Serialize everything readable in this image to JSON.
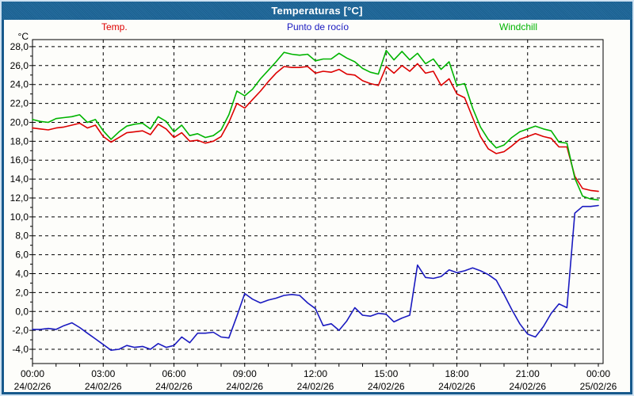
{
  "window": {
    "title": "Temperaturas [°C]"
  },
  "legend": [
    {
      "label": "Temp.",
      "color": "#dd0000"
    },
    {
      "label": "Punto de rocío",
      "color": "#1a1ac0"
    },
    {
      "label": "Windchill",
      "color": "#00b400"
    }
  ],
  "colors": {
    "titlebar": "#1f6494",
    "window_border": "#17598c",
    "plot_border": "#000000",
    "temp_line": "#dd0000",
    "dew_line": "#1a1ac0",
    "windchill_line": "#00b400"
  },
  "chart_data": {
    "type": "line",
    "title": "Temperaturas [°C]",
    "xlabel": "",
    "ylabel": "°C",
    "ylim": [
      -5.5,
      28.7
    ],
    "xlim_hours": [
      0,
      24.2
    ],
    "grid": "dashed",
    "legend_position": "top",
    "x_unit": "hours since 00:00 24/02/26",
    "x": [
      0,
      0.33,
      0.67,
      1,
      1.33,
      1.67,
      2,
      2.33,
      2.67,
      3,
      3.33,
      3.67,
      4,
      4.33,
      4.67,
      5,
      5.33,
      5.67,
      6,
      6.33,
      6.67,
      7,
      7.33,
      7.67,
      8,
      8.33,
      8.67,
      9,
      9.33,
      9.67,
      10,
      10.33,
      10.67,
      11,
      11.33,
      11.67,
      12,
      12.33,
      12.67,
      13,
      13.33,
      13.67,
      14,
      14.33,
      14.67,
      15,
      15.33,
      15.67,
      16,
      16.33,
      16.67,
      17,
      17.33,
      17.67,
      18,
      18.33,
      18.67,
      19,
      19.33,
      19.67,
      20,
      20.33,
      20.67,
      21,
      21.33,
      21.67,
      22,
      22.33,
      22.67,
      23,
      23.33,
      23.67,
      24
    ],
    "series": [
      {
        "name": "Temp.",
        "color": "#dd0000",
        "values": [
          19.4,
          19.3,
          19.2,
          19.4,
          19.5,
          19.7,
          19.9,
          19.4,
          19.7,
          18.5,
          17.9,
          18.4,
          18.9,
          19.0,
          19.1,
          18.7,
          19.8,
          19.3,
          18.4,
          18.9,
          18.0,
          18.1,
          17.8,
          18.0,
          18.5,
          20.0,
          22.0,
          21.5,
          22.4,
          23.3,
          24.3,
          25.2,
          25.9,
          25.8,
          25.8,
          25.9,
          25.2,
          25.4,
          25.3,
          25.6,
          25.1,
          25.0,
          24.4,
          24.1,
          23.9,
          25.9,
          25.2,
          26.0,
          25.4,
          26.2,
          25.2,
          25.4,
          23.9,
          24.6,
          23.0,
          22.6,
          20.5,
          18.5,
          17.2,
          16.7,
          16.9,
          17.5,
          18.2,
          18.5,
          18.8,
          18.5,
          18.3,
          17.4,
          17.4,
          14.3,
          13.0,
          12.8,
          12.7
        ]
      },
      {
        "name": "Punto de rocío",
        "color": "#1a1ac0",
        "values": [
          -1.9,
          -1.9,
          -1.8,
          -1.9,
          -1.5,
          -1.2,
          -1.7,
          -2.3,
          -2.9,
          -3.5,
          -4.1,
          -4.0,
          -3.6,
          -3.8,
          -3.7,
          -4.0,
          -3.4,
          -3.8,
          -3.6,
          -2.7,
          -3.3,
          -2.3,
          -2.3,
          -2.2,
          -2.7,
          -2.8,
          -0.5,
          1.9,
          1.3,
          0.9,
          1.2,
          1.4,
          1.7,
          1.8,
          1.7,
          0.9,
          0.3,
          -1.5,
          -1.3,
          -2.0,
          -1.0,
          0.4,
          -0.4,
          -0.5,
          -0.2,
          -0.3,
          -1.1,
          -0.7,
          -0.4,
          4.9,
          3.6,
          3.5,
          3.7,
          4.4,
          4.1,
          4.3,
          4.6,
          4.3,
          3.9,
          3.3,
          1.8,
          0.2,
          -1.3,
          -2.4,
          -2.7,
          -1.6,
          -0.2,
          0.8,
          0.4,
          10.4,
          11.1,
          11.1,
          11.2
        ]
      },
      {
        "name": "Windchill",
        "color": "#00b400",
        "values": [
          20.3,
          20.1,
          20.0,
          20.4,
          20.5,
          20.6,
          20.8,
          20.0,
          20.3,
          19.1,
          18.2,
          19.0,
          19.6,
          19.8,
          19.9,
          19.3,
          20.6,
          20.1,
          19.0,
          19.7,
          18.6,
          18.8,
          18.4,
          18.6,
          19.2,
          20.8,
          23.3,
          22.8,
          23.5,
          24.6,
          25.5,
          26.4,
          27.4,
          27.2,
          27.1,
          27.2,
          26.5,
          26.7,
          26.7,
          27.3,
          26.8,
          26.4,
          25.7,
          25.3,
          25.1,
          27.6,
          26.6,
          27.5,
          26.6,
          27.3,
          26.2,
          26.7,
          25.6,
          26.4,
          23.9,
          24.1,
          21.5,
          19.5,
          18.2,
          17.3,
          17.6,
          18.4,
          19.0,
          19.3,
          19.6,
          19.3,
          19.1,
          17.9,
          17.8,
          14.1,
          12.2,
          11.9,
          11.8
        ]
      }
    ],
    "y_ticks": [
      {
        "value": 28,
        "label": "28,0"
      },
      {
        "value": 26,
        "label": "26,0"
      },
      {
        "value": 24,
        "label": "24,0"
      },
      {
        "value": 22,
        "label": "22,0"
      },
      {
        "value": 20,
        "label": "20,0"
      },
      {
        "value": 18,
        "label": "18,0"
      },
      {
        "value": 16,
        "label": "16,0"
      },
      {
        "value": 14,
        "label": "14,0"
      },
      {
        "value": 12,
        "label": "12,0"
      },
      {
        "value": 10,
        "label": "10,0"
      },
      {
        "value": 8,
        "label": "8,0"
      },
      {
        "value": 6,
        "label": "6,0"
      },
      {
        "value": 4,
        "label": "4,0"
      },
      {
        "value": 2,
        "label": "2,0"
      },
      {
        "value": 0,
        "label": "0,0"
      },
      {
        "value": -2,
        "label": "-2,0"
      },
      {
        "value": -4,
        "label": "-4,0"
      }
    ],
    "x_ticks": [
      {
        "hour": 0,
        "time": "00:00",
        "date": "24/02/26"
      },
      {
        "hour": 3,
        "time": "03:00",
        "date": "24/02/26"
      },
      {
        "hour": 6,
        "time": "06:00",
        "date": "24/02/26"
      },
      {
        "hour": 9,
        "time": "09:00",
        "date": "24/02/26"
      },
      {
        "hour": 12,
        "time": "12:00",
        "date": "24/02/26"
      },
      {
        "hour": 15,
        "time": "15:00",
        "date": "24/02/26"
      },
      {
        "hour": 18,
        "time": "18:00",
        "date": "24/02/26"
      },
      {
        "hour": 21,
        "time": "21:00",
        "date": "24/02/26"
      },
      {
        "hour": 24,
        "time": "00:00",
        "date": "25/02/26"
      }
    ]
  }
}
